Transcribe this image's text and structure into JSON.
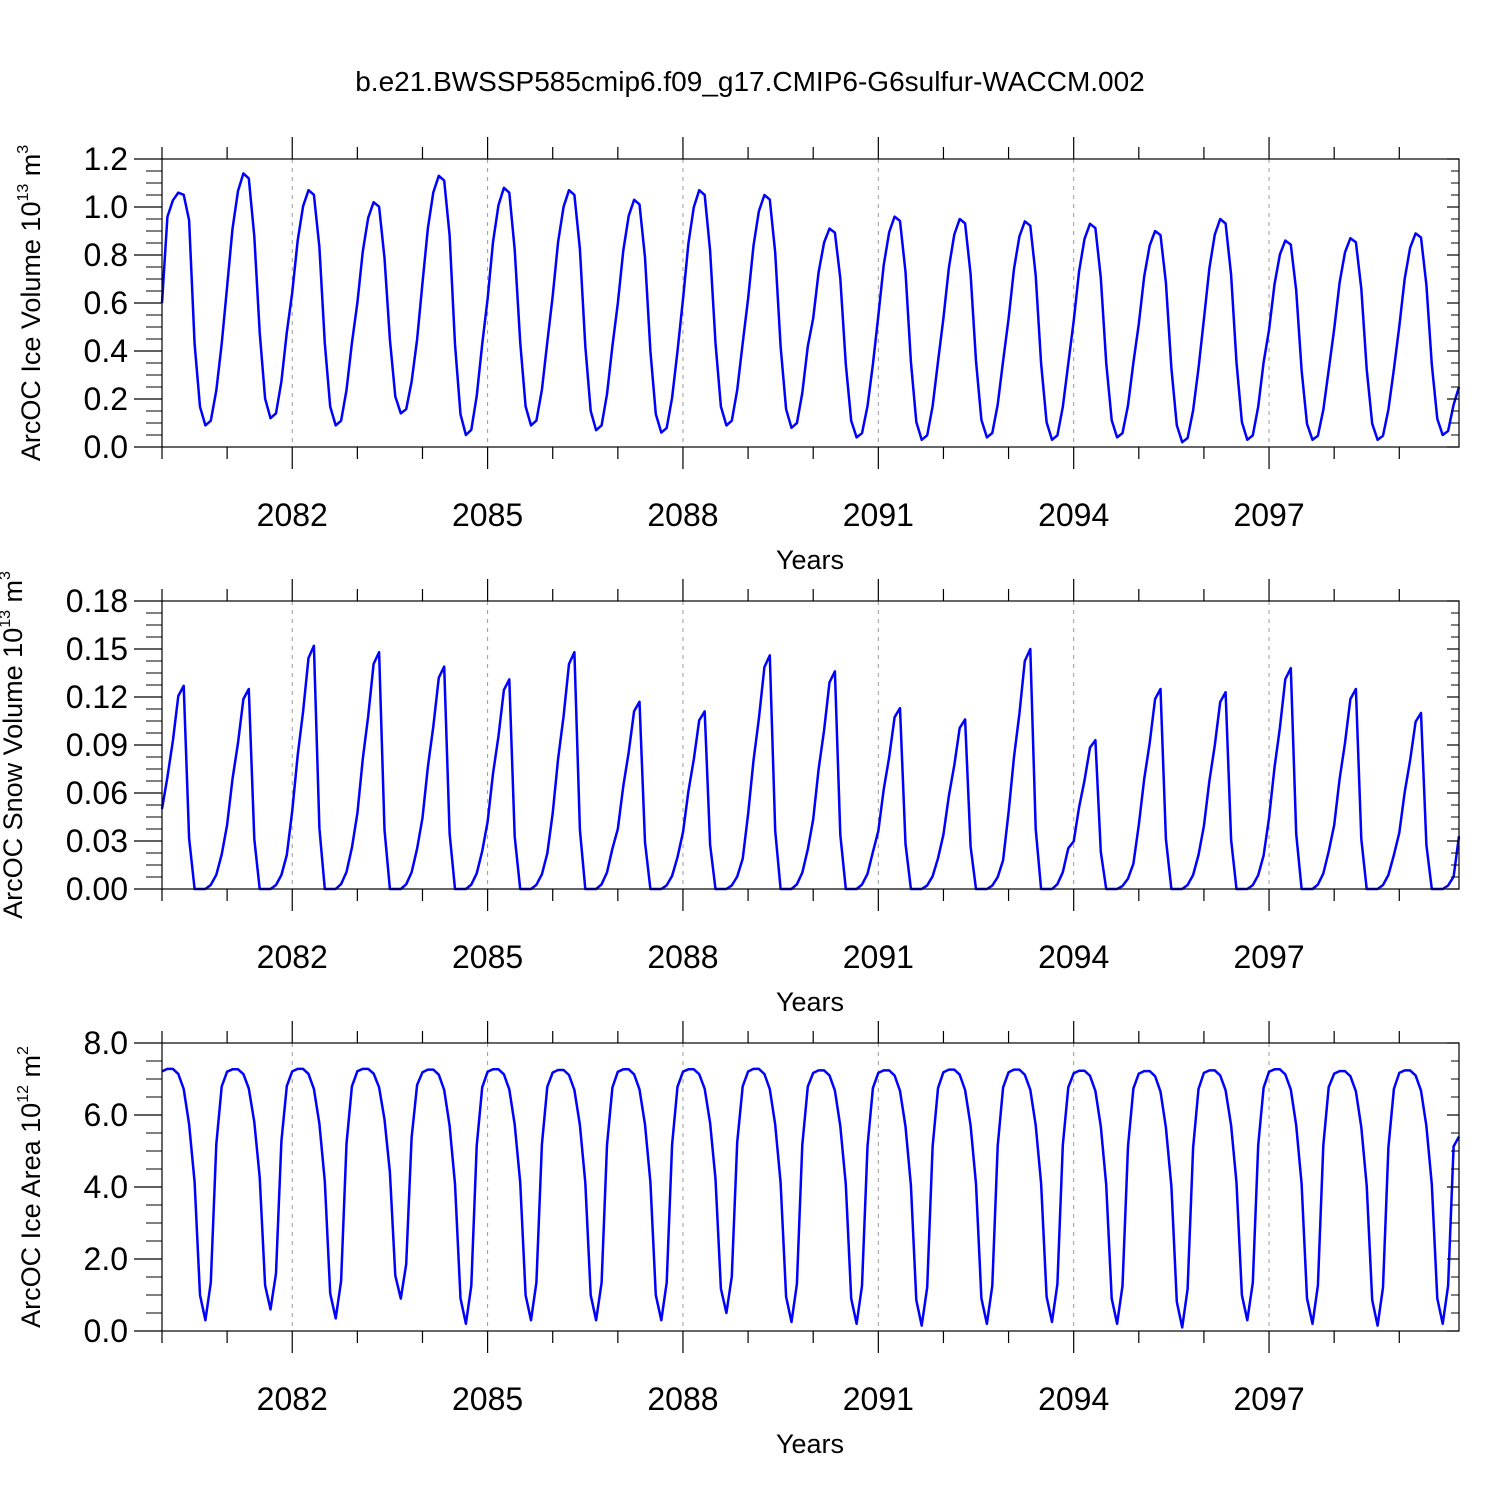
{
  "title": "b.e21.BWSSP585cmip6.f09_g17.CMIP6-G6sulfur-WACCM.002",
  "colors": {
    "series": "#0000ff",
    "axis": "#000000",
    "grid": "#999999"
  },
  "chart_data": [
    {
      "type": "line",
      "ylabel": {
        "prefix": "ArcOC Ice Volume 10",
        "exp": "13",
        "unit": " m",
        "unit_exp": "3"
      },
      "xlabel": "Years",
      "xlim": [
        2080.0,
        2099.917
      ],
      "ylim": [
        0.0,
        1.2
      ],
      "yticks": [
        "0.0",
        "0.2",
        "0.4",
        "0.6",
        "0.8",
        "1.0",
        "1.2"
      ],
      "xticks": [
        2082,
        2085,
        2088,
        2091,
        2094,
        2097
      ],
      "grid": "dashed vertical at major x ticks",
      "series": [
        {
          "peaks": [
            1.06,
            1.14,
            1.07,
            1.02,
            1.13,
            1.08,
            1.07,
            1.03,
            1.07,
            1.05,
            0.91,
            0.96,
            0.95,
            0.94,
            0.93,
            0.9,
            0.95,
            0.86,
            0.87,
            0.89
          ],
          "troughs": [
            0.09,
            0.12,
            0.09,
            0.14,
            0.05,
            0.09,
            0.07,
            0.06,
            0.09,
            0.08,
            0.04,
            0.03,
            0.04,
            0.03,
            0.04,
            0.02,
            0.03,
            0.03,
            0.03,
            0.05
          ],
          "start": 0.6,
          "end": 0.25
        }
      ]
    },
    {
      "type": "line",
      "ylabel": {
        "prefix": "ArcOC Snow Volume 10",
        "exp": "13",
        "unit": " m",
        "unit_exp": "3"
      },
      "xlabel": "Years",
      "xlim": [
        2080.0,
        2099.917
      ],
      "ylim": [
        0.0,
        0.18
      ],
      "yticks": [
        "0.00",
        "0.03",
        "0.06",
        "0.09",
        "0.12",
        "0.15",
        "0.18"
      ],
      "xticks": [
        2082,
        2085,
        2088,
        2091,
        2094,
        2097
      ],
      "grid": "dashed vertical at major x ticks",
      "series": [
        {
          "peaks": [
            0.127,
            0.125,
            0.152,
            0.148,
            0.139,
            0.131,
            0.148,
            0.117,
            0.111,
            0.146,
            0.136,
            0.113,
            0.106,
            0.15,
            0.093,
            0.125,
            0.123,
            0.138,
            0.125,
            0.11
          ],
          "troughs": [
            0.0,
            0.0,
            0.0,
            0.0,
            0.0,
            0.0,
            0.0,
            0.0,
            0.0,
            0.0,
            0.0,
            0.0,
            0.0,
            0.0,
            0.0,
            0.0,
            0.0,
            0.0,
            0.0,
            0.0
          ],
          "start": 0.05,
          "end": 0.033
        }
      ]
    },
    {
      "type": "line",
      "ylabel": {
        "prefix": "ArcOC Ice Area 10",
        "exp": "12",
        "unit": " m",
        "unit_exp": "2"
      },
      "xlabel": "Years",
      "xlim": [
        2080.0,
        2099.917
      ],
      "ylim": [
        0.0,
        8.0
      ],
      "yticks": [
        "0.0",
        "2.0",
        "4.0",
        "6.0",
        "8.0"
      ],
      "xticks": [
        2082,
        2085,
        2088,
        2091,
        2094,
        2097
      ],
      "grid": "dashed vertical at major x ticks",
      "series": [
        {
          "peaks": [
            7.28,
            7.27,
            7.28,
            7.28,
            7.26,
            7.27,
            7.25,
            7.27,
            7.27,
            7.28,
            7.24,
            7.24,
            7.26,
            7.26,
            7.23,
            7.22,
            7.24,
            7.27,
            7.22,
            7.24
          ],
          "troughs": [
            0.3,
            0.6,
            0.35,
            0.9,
            0.2,
            0.3,
            0.3,
            0.3,
            0.5,
            0.25,
            0.2,
            0.15,
            0.2,
            0.25,
            0.2,
            0.1,
            0.3,
            0.2,
            0.15,
            0.2
          ],
          "start": 7.25,
          "end": 5.4
        }
      ]
    }
  ]
}
